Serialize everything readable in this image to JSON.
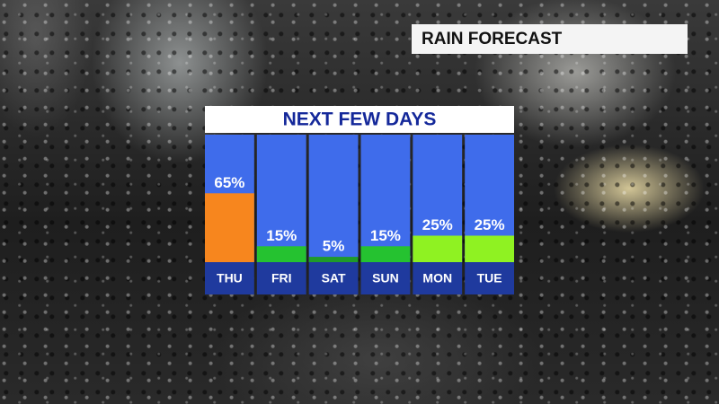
{
  "header": {
    "title": "RAIN FORECAST"
  },
  "chart_data": {
    "type": "bar",
    "title": "NEXT FEW DAYS",
    "categories": [
      "THU",
      "FRI",
      "SAT",
      "SUN",
      "MON",
      "TUE"
    ],
    "values": [
      65,
      15,
      5,
      15,
      25,
      25
    ],
    "value_labels": [
      "65%",
      "15%",
      "5%",
      "15%",
      "25%",
      "25%"
    ],
    "colors": [
      "#f7861e",
      "#25c230",
      "#1f9a2a",
      "#25c230",
      "#8ff222",
      "#8ff222"
    ]
  }
}
